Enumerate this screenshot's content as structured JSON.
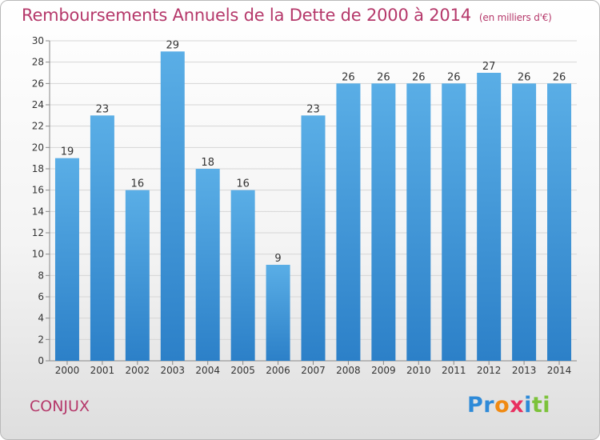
{
  "title": "Remboursements Annuels de la Dette de 2000 à 2014",
  "unit": "(en milliers d'€)",
  "commune": "CONJUX",
  "brand": {
    "letters": [
      "P",
      "r",
      "o",
      "x",
      "i",
      "t",
      "i"
    ],
    "colors": [
      "#2e8ad8",
      "#2e8ad8",
      "#f08a12",
      "#e83060",
      "#2e8ad8",
      "#7cc23a",
      "#7cc23a"
    ]
  },
  "colors": {
    "bar_top": "#5aaee6",
    "bar_bottom": "#2c80c8",
    "title": "#b5386a"
  },
  "chart_data": {
    "type": "bar",
    "categories": [
      "2000",
      "2001",
      "2002",
      "2003",
      "2004",
      "2005",
      "2006",
      "2007",
      "2008",
      "2009",
      "2010",
      "2011",
      "2012",
      "2013",
      "2014"
    ],
    "values": [
      19,
      23,
      16,
      29,
      18,
      16,
      9,
      23,
      26,
      26,
      26,
      26,
      27,
      26,
      26
    ],
    "ylim": [
      0,
      30
    ],
    "yticks": [
      0,
      2,
      4,
      6,
      8,
      10,
      12,
      14,
      16,
      18,
      20,
      22,
      24,
      26,
      28,
      30
    ],
    "grid": true
  }
}
